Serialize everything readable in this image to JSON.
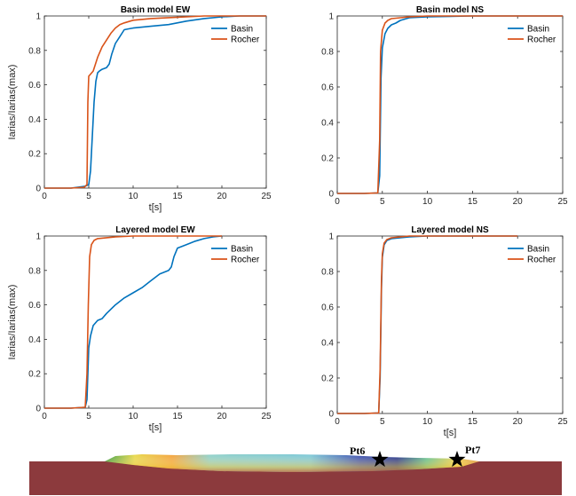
{
  "colors": {
    "basin": "#0072BD",
    "rocher": "#D95319",
    "axis": "#262626",
    "soil": "#8C3A3D"
  },
  "chart_data": [
    {
      "type": "line",
      "title": "Basin model EW",
      "xlabel": "t[s]",
      "ylabel": "Iarias/Iarias(max)",
      "xlim": [
        0,
        25
      ],
      "ylim": [
        0,
        1
      ],
      "xticks": [
        "0",
        "5",
        "10",
        "15",
        "20",
        "25"
      ],
      "yticks": [
        "0",
        "0.2",
        "0.4",
        "0.6",
        "0.8",
        "1"
      ],
      "legend": "top-right",
      "series": [
        {
          "name": "Basin",
          "color": "#0072BD",
          "x": [
            0,
            3,
            4.5,
            5.0,
            5.2,
            5.4,
            5.6,
            5.8,
            6.0,
            6.2,
            6.5,
            7.0,
            7.3,
            7.6,
            8.0,
            8.5,
            9.0,
            9.5,
            10,
            12,
            14,
            16,
            18,
            20,
            22,
            25
          ],
          "y": [
            0,
            0,
            0.01,
            0.02,
            0.1,
            0.3,
            0.5,
            0.62,
            0.67,
            0.68,
            0.69,
            0.7,
            0.72,
            0.78,
            0.84,
            0.88,
            0.92,
            0.925,
            0.93,
            0.94,
            0.95,
            0.97,
            0.985,
            0.995,
            1.0,
            1.0
          ]
        },
        {
          "name": "Rocher",
          "color": "#D95319",
          "x": [
            0,
            3,
            4.5,
            4.8,
            4.9,
            5.0,
            5.5,
            6.0,
            6.5,
            7.0,
            7.5,
            8.0,
            8.5,
            9.0,
            10,
            12,
            14,
            16,
            18,
            20,
            22,
            25
          ],
          "y": [
            0,
            0,
            0.005,
            0.02,
            0.5,
            0.65,
            0.68,
            0.76,
            0.82,
            0.86,
            0.9,
            0.93,
            0.95,
            0.96,
            0.975,
            0.985,
            0.99,
            0.995,
            1.0,
            1.0,
            1.0,
            1.0
          ]
        }
      ]
    },
    {
      "type": "line",
      "title": "Basin model NS",
      "xlabel": "",
      "ylabel": "",
      "xlim": [
        0,
        25
      ],
      "ylim": [
        0,
        1
      ],
      "xticks": [
        "0",
        "5",
        "10",
        "15",
        "20",
        "25"
      ],
      "yticks": [
        "0",
        "0.2",
        "0.4",
        "0.6",
        "0.8",
        "1"
      ],
      "legend": "top-right",
      "series": [
        {
          "name": "Basin",
          "color": "#0072BD",
          "x": [
            0,
            3,
            4.5,
            4.7,
            4.85,
            5.0,
            5.3,
            5.6,
            6.0,
            6.5,
            7.0,
            8.0,
            10,
            15,
            20,
            25
          ],
          "y": [
            0,
            0,
            0.003,
            0.1,
            0.65,
            0.82,
            0.9,
            0.93,
            0.95,
            0.96,
            0.975,
            0.99,
            0.995,
            1.0,
            1.0,
            1.0
          ]
        },
        {
          "name": "Rocher",
          "color": "#D95319",
          "x": [
            0,
            3,
            4.5,
            4.7,
            4.8,
            5.0,
            5.3,
            5.6,
            6.0,
            7.0,
            8.0,
            10,
            15,
            20,
            25
          ],
          "y": [
            0,
            0,
            0.003,
            0.3,
            0.8,
            0.92,
            0.96,
            0.975,
            0.985,
            0.99,
            0.995,
            1.0,
            1.0,
            1.0,
            1.0
          ]
        }
      ]
    },
    {
      "type": "line",
      "title": "Layered model EW",
      "xlabel": "t[s]",
      "ylabel": "Iarias/Iarias(max)",
      "xlim": [
        0,
        25
      ],
      "ylim": [
        0,
        1
      ],
      "xticks": [
        "0",
        "5",
        "10",
        "15",
        "20",
        "25"
      ],
      "yticks": [
        "0",
        "0.2",
        "0.4",
        "0.6",
        "0.8",
        "1"
      ],
      "legend": "top-right",
      "series": [
        {
          "name": "Basin",
          "color": "#0072BD",
          "x": [
            0,
            3,
            4.6,
            4.8,
            5.0,
            5.2,
            5.5,
            6.0,
            6.5,
            7.0,
            8.0,
            9.0,
            10,
            11,
            12,
            13,
            14,
            14.3,
            14.6,
            15,
            16,
            17,
            18,
            19,
            20
          ],
          "y": [
            0,
            0,
            0.005,
            0.05,
            0.35,
            0.42,
            0.48,
            0.51,
            0.52,
            0.55,
            0.6,
            0.64,
            0.67,
            0.7,
            0.74,
            0.78,
            0.8,
            0.82,
            0.88,
            0.93,
            0.95,
            0.97,
            0.985,
            0.995,
            1.0
          ]
        },
        {
          "name": "Rocher",
          "color": "#D95319",
          "x": [
            0,
            3,
            4.6,
            4.8,
            4.95,
            5.1,
            5.3,
            5.6,
            6.0,
            7.0,
            8.0,
            10,
            15,
            20
          ],
          "y": [
            0,
            0,
            0.005,
            0.2,
            0.6,
            0.88,
            0.95,
            0.975,
            0.985,
            0.99,
            0.995,
            1.0,
            1.0,
            1.0
          ]
        }
      ]
    },
    {
      "type": "line",
      "title": "Layered model NS",
      "xlabel": "t[s]",
      "ylabel": "",
      "xlim": [
        0,
        25
      ],
      "ylim": [
        0,
        1
      ],
      "xticks": [
        "0",
        "5",
        "10",
        "15",
        "20",
        "25"
      ],
      "yticks": [
        "0",
        "0.2",
        "0.4",
        "0.6",
        "0.8",
        "1"
      ],
      "legend": "top-right",
      "series": [
        {
          "name": "Basin",
          "color": "#0072BD",
          "x": [
            0,
            3,
            4.6,
            4.75,
            4.9,
            5.0,
            5.2,
            5.5,
            6.0,
            7.0,
            8.0,
            10,
            15,
            20
          ],
          "y": [
            0,
            0,
            0.003,
            0.2,
            0.7,
            0.88,
            0.95,
            0.975,
            0.985,
            0.99,
            0.995,
            1.0,
            1.0,
            1.0
          ]
        },
        {
          "name": "Rocher",
          "color": "#D95319",
          "x": [
            0,
            3,
            4.6,
            4.75,
            4.9,
            5.0,
            5.2,
            5.5,
            6.0,
            7.0,
            8.0,
            10,
            15,
            20
          ],
          "y": [
            0,
            0,
            0.003,
            0.25,
            0.75,
            0.9,
            0.96,
            0.98,
            0.99,
            0.995,
            1.0,
            1.0,
            1.0,
            1.0
          ]
        }
      ]
    }
  ],
  "cross_section": {
    "markers": [
      {
        "label": "Pt6",
        "icon": "star-icon"
      },
      {
        "label": "Pt7",
        "icon": "star-icon"
      }
    ]
  }
}
